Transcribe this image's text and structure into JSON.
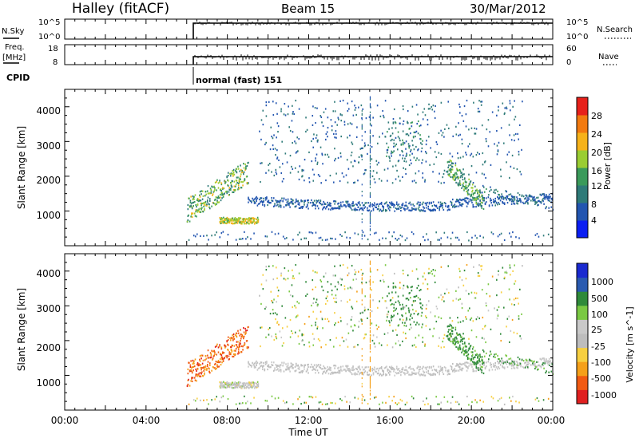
{
  "header": {
    "station": "Halley (fitACF)",
    "beam": "Beam 15",
    "date": "30/Mar/2012"
  },
  "panel_nsky": {
    "left_label": "N.Sky",
    "right_label": "N.Search",
    "left_ticks": [
      "10^5",
      "10^0"
    ],
    "right_ticks": [
      "10^5",
      "10^0"
    ]
  },
  "panel_freq": {
    "left_label_1": "Freq.",
    "left_label_2": "[MHz]",
    "right_label": "Nave",
    "left_ticks": [
      "18",
      "8"
    ],
    "right_ticks": [
      "60",
      "0"
    ]
  },
  "cpid": {
    "label": "CPID",
    "value": "normal (fast) 151"
  },
  "x_axis": {
    "title": "Time UT",
    "ticks": [
      "00:00",
      "04:00",
      "08:00",
      "12:00",
      "16:00",
      "20:00",
      "00:00"
    ]
  },
  "colors": {
    "power": [
      "#0b1ef2",
      "#2255b0",
      "#2e7a78",
      "#3a9a5a",
      "#9acd32",
      "#f6b21a",
      "#f27a10",
      "#e7211b"
    ],
    "velocity": [
      "#e02020",
      "#f15a12",
      "#f5a01a",
      "#f7cf40",
      "#bdbdbd",
      "#c9c9c9",
      "#7ac943",
      "#2f8a3a",
      "#2a5ab0",
      "#1a2ad0"
    ]
  },
  "chart_data": [
    {
      "type": "heatmap",
      "title": "",
      "xlabel": "",
      "ylabel": "Slant Range [km]",
      "yticks": [
        "1000",
        "2000",
        "3000",
        "4000"
      ],
      "ylim": [
        0,
        4500
      ],
      "colorbar": {
        "label": "Power [dB]",
        "ticks": [
          "4",
          "8",
          "12",
          "16",
          "20",
          "24",
          "28"
        ],
        "range": [
          0,
          30
        ]
      },
      "features": [
        {
          "name": "dayside band",
          "t_start": 9.0,
          "t_end": 24.0,
          "range_km": 1250,
          "dB": 6
        },
        {
          "name": "morning echoes",
          "t_start": 6.0,
          "t_end": 9.0,
          "range_km": 1500,
          "dB": 14
        },
        {
          "name": "near range",
          "t_start": 7.5,
          "t_end": 9.5,
          "range_km": 750,
          "dB": 18
        },
        {
          "name": "afternoon plume",
          "t_start": 16.0,
          "t_end": 17.5,
          "range_km": 2800,
          "dB": 8
        },
        {
          "name": "evening burst",
          "t_start": 19.0,
          "t_end": 20.5,
          "range_km": 2000,
          "dB": 16
        }
      ]
    },
    {
      "type": "heatmap",
      "title": "",
      "xlabel": "Time UT",
      "ylabel": "Slant Range [km]",
      "yticks": [
        "1000",
        "2000",
        "3000",
        "4000"
      ],
      "ylim": [
        0,
        4500
      ],
      "colorbar": {
        "label": "Velocity [m s^-1]",
        "ticks": [
          "1000",
          "500",
          "100",
          "25",
          "-25",
          "-100",
          "-500",
          "-1000"
        ]
      },
      "features": [
        {
          "name": "dayside band",
          "t_start": 9.0,
          "t_end": 24.0,
          "range_km": 1250,
          "velocity": 0
        },
        {
          "name": "morning echoes",
          "t_start": 6.0,
          "t_end": 9.0,
          "range_km": 1500,
          "velocity": -600
        },
        {
          "name": "near range",
          "t_start": 7.5,
          "t_end": 9.5,
          "range_km": 750,
          "velocity": 0
        },
        {
          "name": "afternoon plume",
          "t_start": 16.0,
          "t_end": 17.5,
          "range_km": 2800,
          "velocity": 150
        },
        {
          "name": "evening burst",
          "t_start": 19.0,
          "t_end": 20.5,
          "range_km": 2000,
          "velocity": 120
        }
      ]
    }
  ]
}
